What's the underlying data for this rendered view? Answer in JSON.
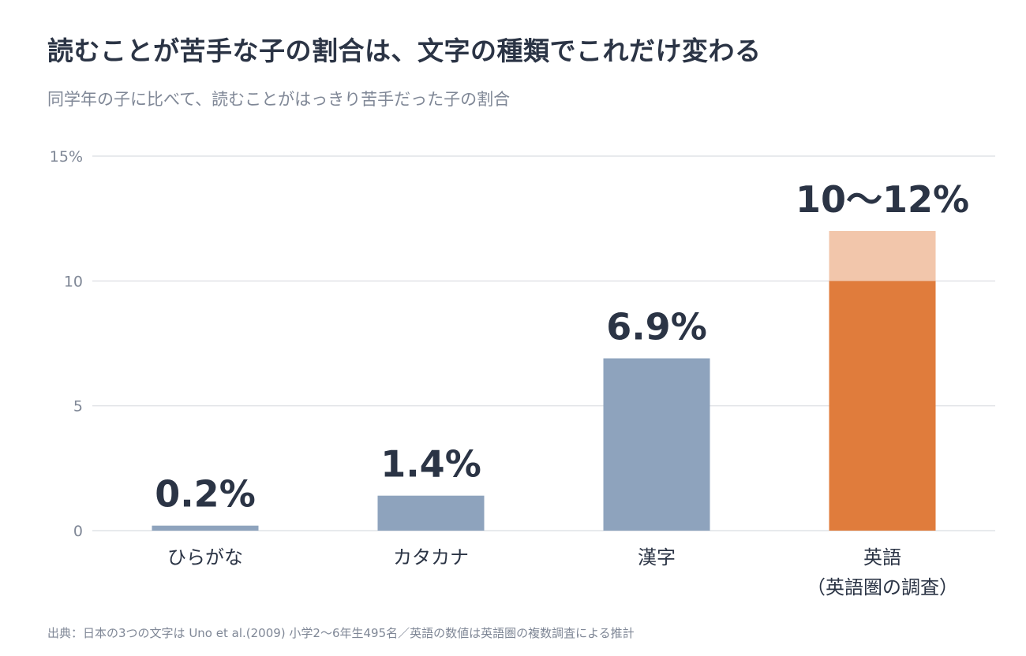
{
  "title": "読むことが苦手な子の割合は、文字の種類でこれだけ変わる",
  "subtitle": "同学年の子に比べて、読むことがはっきり苦手だった子の割合",
  "source": "出典：日本の3つの文字は Uno et al.(2009) 小学2〜6年生495名／英語の数値は英語圏の複数調査による推計",
  "colors": {
    "japanese_bar": "#8ea3bd",
    "english_bar": "#e07c3c",
    "english_range": "#f2c6ab"
  },
  "chart_data": {
    "type": "bar",
    "categories": [
      [
        "ひらがな"
      ],
      [
        "カタカナ"
      ],
      [
        "漢字"
      ],
      [
        "英語",
        "（英語圏の調査）"
      ]
    ],
    "values": [
      0.2,
      1.4,
      6.9,
      10
    ],
    "range_high": [
      null,
      null,
      null,
      12
    ],
    "value_labels": [
      "0.2%",
      "1.4%",
      "6.9%",
      "10〜12%"
    ],
    "highlight_index": 3,
    "yticks": [
      0,
      5,
      10,
      15
    ],
    "ytick_labels": [
      "0",
      "5",
      "10",
      "15%"
    ],
    "ylim": [
      0,
      15
    ],
    "grid": true
  }
}
